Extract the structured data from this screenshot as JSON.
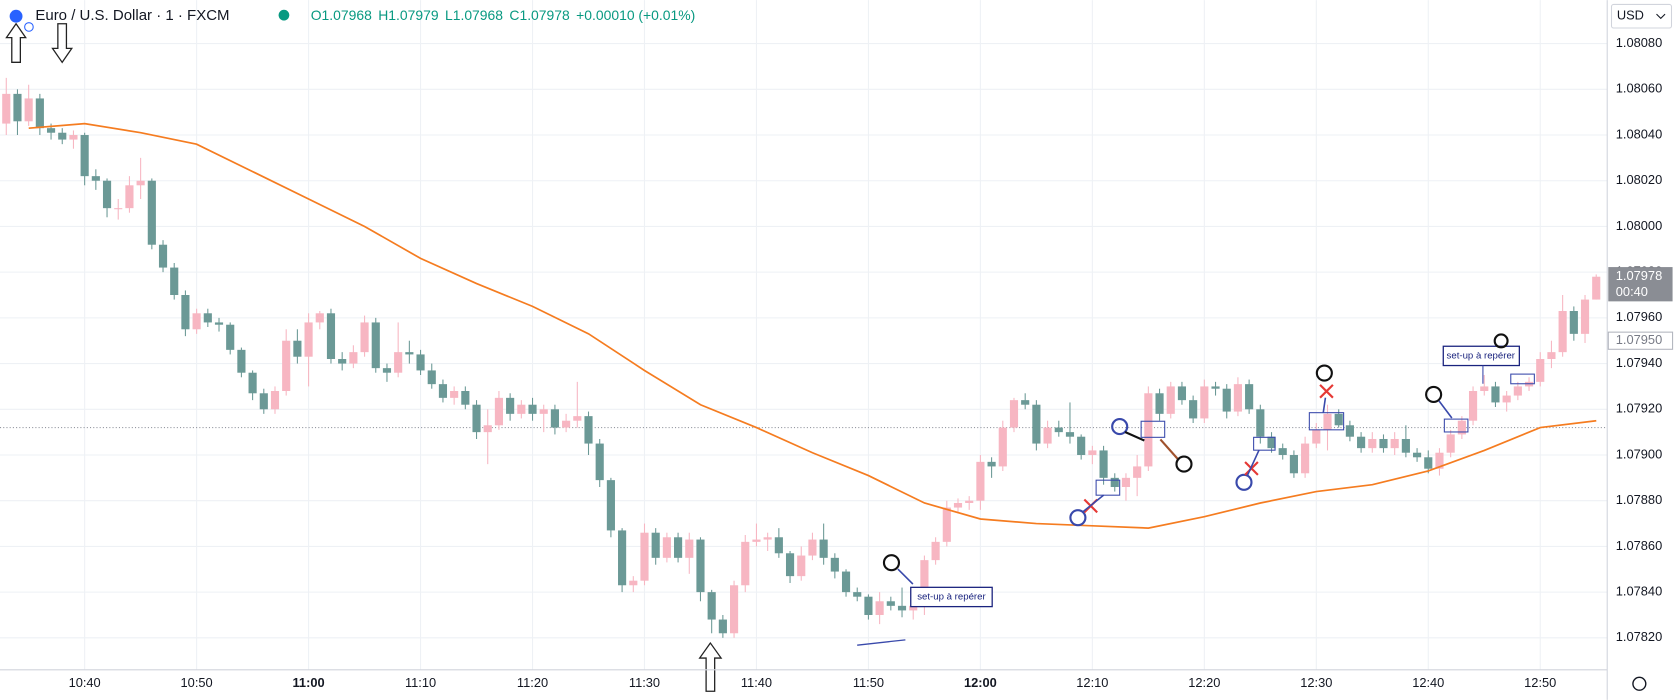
{
  "chart_data": {
    "type": "candlestick",
    "title": "Euro / U.S. Dollar · 1 · FXCM",
    "header_values": [
      "O1.07968",
      "H1.07979",
      "L1.07968",
      "C1.07978",
      "+0.00010 (+0.01%)"
    ],
    "currency": "USD",
    "up_color": "#f7b6c2",
    "down_color": "#6b9996",
    "x": [
      "10:33",
      "10:34",
      "10:35",
      "10:36",
      "10:37",
      "10:38",
      "10:39",
      "10:40",
      "10:41",
      "10:42",
      "10:43",
      "10:44",
      "10:45",
      "10:46",
      "10:47",
      "10:48",
      "10:49",
      "10:50",
      "10:51",
      "10:52",
      "10:53",
      "10:54",
      "10:55",
      "10:56",
      "10:57",
      "10:58",
      "10:59",
      "11:00",
      "11:01",
      "11:02",
      "11:03",
      "11:04",
      "11:05",
      "11:06",
      "11:07",
      "11:08",
      "11:09",
      "11:10",
      "11:11",
      "11:12",
      "11:13",
      "11:14",
      "11:15",
      "11:16",
      "11:17",
      "11:18",
      "11:19",
      "11:20",
      "11:21",
      "11:22",
      "11:23",
      "11:24",
      "11:25",
      "11:26",
      "11:27",
      "11:28",
      "11:29",
      "11:30",
      "11:31",
      "11:32",
      "11:33",
      "11:34",
      "11:35",
      "11:36",
      "11:37",
      "11:38",
      "11:39",
      "11:40",
      "11:41",
      "11:42",
      "11:43",
      "11:44",
      "11:45",
      "11:46",
      "11:47",
      "11:48",
      "11:49",
      "11:50",
      "11:51",
      "11:52",
      "11:53",
      "11:54",
      "11:55",
      "11:56",
      "11:57",
      "11:58",
      "11:59",
      "12:00",
      "12:01",
      "12:02",
      "12:03",
      "12:04",
      "12:05",
      "12:06",
      "12:07",
      "12:08",
      "12:09",
      "12:10",
      "12:11",
      "12:12",
      "12:13",
      "12:14",
      "12:15",
      "12:16",
      "12:17",
      "12:18",
      "12:19",
      "12:20",
      "12:21",
      "12:22",
      "12:23",
      "12:24",
      "12:25",
      "12:26",
      "12:27",
      "12:28",
      "12:29",
      "12:30",
      "12:31",
      "12:32",
      "12:33",
      "12:34",
      "12:35",
      "12:36",
      "12:37",
      "12:38",
      "12:39",
      "12:40",
      "12:41",
      "12:42",
      "12:43",
      "12:44",
      "12:45",
      "12:46",
      "12:47",
      "12:48",
      "12:49",
      "12:50",
      "12:51",
      "12:52",
      "12:53",
      "12:54",
      "12:55"
    ],
    "ohlc": [
      [
        1.08045,
        1.08065,
        1.0804,
        1.08058
      ],
      [
        1.08058,
        1.0806,
        1.0804,
        1.08046
      ],
      [
        1.08046,
        1.08062,
        1.08044,
        1.08056
      ],
      [
        1.08056,
        1.08058,
        1.0804,
        1.08043
      ],
      [
        1.08043,
        1.08045,
        1.08038,
        1.08041
      ],
      [
        1.08041,
        1.08043,
        1.08036,
        1.08038
      ],
      [
        1.08038,
        1.08042,
        1.08034,
        1.0804
      ],
      [
        1.0804,
        1.08041,
        1.08018,
        1.08022
      ],
      [
        1.08022,
        1.08025,
        1.08016,
        1.0802
      ],
      [
        1.0802,
        1.08021,
        1.08004,
        1.08008
      ],
      [
        1.08008,
        1.08012,
        1.08003,
        1.08008
      ],
      [
        1.08008,
        1.08022,
        1.08006,
        1.08018
      ],
      [
        1.08018,
        1.0803,
        1.08012,
        1.0802
      ],
      [
        1.0802,
        1.08021,
        1.0799,
        1.07992
      ],
      [
        1.07992,
        1.07994,
        1.0798,
        1.07982
      ],
      [
        1.07982,
        1.07984,
        1.07968,
        1.0797
      ],
      [
        1.0797,
        1.07972,
        1.07952,
        1.07955
      ],
      [
        1.07955,
        1.07964,
        1.07953,
        1.07962
      ],
      [
        1.07962,
        1.07964,
        1.07956,
        1.07958
      ],
      [
        1.07958,
        1.0796,
        1.07954,
        1.07957
      ],
      [
        1.07957,
        1.07958,
        1.07944,
        1.07946
      ],
      [
        1.07946,
        1.07947,
        1.07934,
        1.07936
      ],
      [
        1.07936,
        1.07937,
        1.07924,
        1.07927
      ],
      [
        1.07927,
        1.07929,
        1.07918,
        1.0792
      ],
      [
        1.0792,
        1.0793,
        1.07918,
        1.07928
      ],
      [
        1.07928,
        1.07955,
        1.07926,
        1.0795
      ],
      [
        1.0795,
        1.07955,
        1.0794,
        1.07943
      ],
      [
        1.07943,
        1.07962,
        1.0793,
        1.07958
      ],
      [
        1.07958,
        1.07963,
        1.07955,
        1.07962
      ],
      [
        1.07962,
        1.07964,
        1.0794,
        1.07942
      ],
      [
        1.07942,
        1.07945,
        1.07937,
        1.0794
      ],
      [
        1.0794,
        1.07948,
        1.07938,
        1.07945
      ],
      [
        1.07945,
        1.07961,
        1.07943,
        1.07958
      ],
      [
        1.07958,
        1.0796,
        1.07936,
        1.07938
      ],
      [
        1.07938,
        1.0794,
        1.07932,
        1.07936
      ],
      [
        1.07936,
        1.07958,
        1.07934,
        1.07945
      ],
      [
        1.07945,
        1.0795,
        1.0794,
        1.07944
      ],
      [
        1.07944,
        1.07946,
        1.07935,
        1.07937
      ],
      [
        1.07937,
        1.0794,
        1.07929,
        1.07931
      ],
      [
        1.07931,
        1.07933,
        1.07923,
        1.07925
      ],
      [
        1.07925,
        1.0793,
        1.07922,
        1.07928
      ],
      [
        1.07928,
        1.0793,
        1.0792,
        1.07922
      ],
      [
        1.07922,
        1.07924,
        1.07907,
        1.0791
      ],
      [
        1.0791,
        1.0792,
        1.07896,
        1.07913
      ],
      [
        1.07913,
        1.07928,
        1.07911,
        1.07925
      ],
      [
        1.07925,
        1.07927,
        1.07915,
        1.07918
      ],
      [
        1.07918,
        1.07924,
        1.07916,
        1.07922
      ],
      [
        1.07922,
        1.07925,
        1.07915,
        1.07918
      ],
      [
        1.07918,
        1.07922,
        1.0791,
        1.0792
      ],
      [
        1.0792,
        1.07922,
        1.07909,
        1.07912
      ],
      [
        1.07912,
        1.07918,
        1.0791,
        1.07915
      ],
      [
        1.07915,
        1.07932,
        1.07912,
        1.07917
      ],
      [
        1.07917,
        1.07919,
        1.079,
        1.07905
      ],
      [
        1.07905,
        1.07907,
        1.07886,
        1.07889
      ],
      [
        1.07889,
        1.0789,
        1.07864,
        1.07867
      ],
      [
        1.07867,
        1.07868,
        1.0784,
        1.07843
      ],
      [
        1.07843,
        1.07847,
        1.0784,
        1.07845
      ],
      [
        1.07845,
        1.0787,
        1.07843,
        1.07866
      ],
      [
        1.07866,
        1.07868,
        1.07852,
        1.07855
      ],
      [
        1.07855,
        1.07866,
        1.07853,
        1.07864
      ],
      [
        1.07864,
        1.07866,
        1.07853,
        1.07855
      ],
      [
        1.07855,
        1.07866,
        1.07848,
        1.07863
      ],
      [
        1.07863,
        1.07864,
        1.07836,
        1.0784
      ],
      [
        1.0784,
        1.07841,
        1.07822,
        1.07828
      ],
      [
        1.07828,
        1.0783,
        1.0782,
        1.07822
      ],
      [
        1.07822,
        1.07845,
        1.0782,
        1.07843
      ],
      [
        1.07843,
        1.07865,
        1.0784,
        1.07862
      ],
      [
        1.07862,
        1.0787,
        1.0786,
        1.07863
      ],
      [
        1.07863,
        1.07866,
        1.07858,
        1.07864
      ],
      [
        1.07864,
        1.07868,
        1.07855,
        1.07857
      ],
      [
        1.07857,
        1.07858,
        1.07844,
        1.07847
      ],
      [
        1.07847,
        1.0786,
        1.07845,
        1.07856
      ],
      [
        1.07856,
        1.07866,
        1.07854,
        1.07863
      ],
      [
        1.07863,
        1.0787,
        1.07852,
        1.07855
      ],
      [
        1.07855,
        1.07857,
        1.07846,
        1.07849
      ],
      [
        1.07849,
        1.0785,
        1.07838,
        1.0784
      ],
      [
        1.0784,
        1.07842,
        1.07836,
        1.07838
      ],
      [
        1.07838,
        1.07839,
        1.07828,
        1.0783
      ],
      [
        1.0783,
        1.0784,
        1.07826,
        1.07836
      ],
      [
        1.07836,
        1.07838,
        1.07832,
        1.07834
      ],
      [
        1.07834,
        1.07842,
        1.07829,
        1.07832
      ],
      [
        1.07832,
        1.07836,
        1.07828,
        1.07834
      ],
      [
        1.07834,
        1.07856,
        1.0783,
        1.07854
      ],
      [
        1.07854,
        1.07864,
        1.07852,
        1.07862
      ],
      [
        1.07862,
        1.0788,
        1.0786,
        1.07877
      ],
      [
        1.07877,
        1.07881,
        1.07875,
        1.07879
      ],
      [
        1.07879,
        1.07882,
        1.07876,
        1.0788
      ],
      [
        1.0788,
        1.079,
        1.07876,
        1.07897
      ],
      [
        1.07897,
        1.07899,
        1.0789,
        1.07895
      ],
      [
        1.07895,
        1.07915,
        1.07893,
        1.07912
      ],
      [
        1.07912,
        1.07925,
        1.0791,
        1.07924
      ],
      [
        1.07924,
        1.07927,
        1.0792,
        1.07922
      ],
      [
        1.07922,
        1.07924,
        1.07902,
        1.07905
      ],
      [
        1.07905,
        1.07915,
        1.07903,
        1.07912
      ],
      [
        1.07912,
        1.07915,
        1.07908,
        1.0791
      ],
      [
        1.0791,
        1.07923,
        1.07905,
        1.07908
      ],
      [
        1.07908,
        1.07909,
        1.07898,
        1.079
      ],
      [
        1.079,
        1.07904,
        1.07896,
        1.07902
      ],
      [
        1.07902,
        1.07904,
        1.07887,
        1.0789
      ],
      [
        1.0789,
        1.07892,
        1.07884,
        1.07886
      ],
      [
        1.07886,
        1.07892,
        1.0788,
        1.0789
      ],
      [
        1.0789,
        1.079,
        1.07882,
        1.07895
      ],
      [
        1.07895,
        1.0793,
        1.07893,
        1.07927
      ],
      [
        1.07927,
        1.07929,
        1.07915,
        1.07918
      ],
      [
        1.07918,
        1.07932,
        1.07916,
        1.0793
      ],
      [
        1.0793,
        1.07932,
        1.07922,
        1.07924
      ],
      [
        1.07924,
        1.07926,
        1.07914,
        1.07916
      ],
      [
        1.07916,
        1.07933,
        1.07914,
        1.0793
      ],
      [
        1.0793,
        1.07932,
        1.07926,
        1.07929
      ],
      [
        1.07929,
        1.07931,
        1.07916,
        1.07919
      ],
      [
        1.07919,
        1.07934,
        1.07917,
        1.07931
      ],
      [
        1.07931,
        1.07933,
        1.07918,
        1.0792
      ],
      [
        1.0792,
        1.07922,
        1.07905,
        1.07908
      ],
      [
        1.07908,
        1.0791,
        1.07901,
        1.07903
      ],
      [
        1.07903,
        1.07905,
        1.07898,
        1.079
      ],
      [
        1.079,
        1.07902,
        1.0789,
        1.07892
      ],
      [
        1.07892,
        1.07908,
        1.0789,
        1.07905
      ],
      [
        1.07905,
        1.07914,
        1.07903,
        1.07911
      ],
      [
        1.07911,
        1.07922,
        1.07902,
        1.07918
      ],
      [
        1.07918,
        1.0792,
        1.07912,
        1.07913
      ],
      [
        1.07913,
        1.07915,
        1.07906,
        1.07908
      ],
      [
        1.07908,
        1.0791,
        1.07901,
        1.07903
      ],
      [
        1.07903,
        1.0791,
        1.07901,
        1.07907
      ],
      [
        1.07907,
        1.07909,
        1.07901,
        1.07903
      ],
      [
        1.07903,
        1.0791,
        1.079,
        1.07907
      ],
      [
        1.07907,
        1.07913,
        1.07899,
        1.07901
      ],
      [
        1.07901,
        1.07903,
        1.07897,
        1.07899
      ],
      [
        1.07899,
        1.07902,
        1.07892,
        1.07894
      ],
      [
        1.07894,
        1.07903,
        1.07891,
        1.07901
      ],
      [
        1.07901,
        1.07911,
        1.07899,
        1.07909
      ],
      [
        1.07909,
        1.07917,
        1.07907,
        1.07915
      ],
      [
        1.07915,
        1.0793,
        1.07913,
        1.07928
      ],
      [
        1.07928,
        1.07935,
        1.07926,
        1.0793
      ],
      [
        1.0793,
        1.07932,
        1.07921,
        1.07923
      ],
      [
        1.07923,
        1.07928,
        1.07919,
        1.07926
      ],
      [
        1.07926,
        1.07932,
        1.07924,
        1.0793
      ],
      [
        1.0793,
        1.07934,
        1.07928,
        1.07932
      ],
      [
        1.07932,
        1.07945,
        1.0793,
        1.07942
      ],
      [
        1.07942,
        1.0795,
        1.07938,
        1.07945
      ],
      [
        1.07945,
        1.0797,
        1.07943,
        1.07963
      ],
      [
        1.07963,
        1.07965,
        1.0795,
        1.07953
      ],
      [
        1.07953,
        1.0797,
        1.07949,
        1.07968
      ],
      [
        1.07968,
        1.07979,
        1.07968,
        1.07978
      ]
    ],
    "ma": {
      "color": "#f57c20",
      "x": [
        "10:35",
        "10:40",
        "10:45",
        "10:50",
        "10:55",
        "11:00",
        "11:05",
        "11:10",
        "11:15",
        "11:20",
        "11:25",
        "11:30",
        "11:35",
        "11:40",
        "11:45",
        "11:50",
        "11:55",
        "12:00",
        "12:05",
        "12:10",
        "12:15",
        "12:20",
        "12:25",
        "12:30",
        "12:35",
        "12:40",
        "12:45",
        "12:50",
        "12:55"
      ],
      "values": [
        1.08043,
        1.08045,
        1.08041,
        1.08036,
        1.08024,
        1.08012,
        1.08,
        1.07986,
        1.07975,
        1.07965,
        1.07953,
        1.07937,
        1.07922,
        1.07912,
        1.07901,
        1.07891,
        1.07879,
        1.07872,
        1.0787,
        1.07869,
        1.07868,
        1.07873,
        1.07879,
        1.07884,
        1.07887,
        1.07893,
        1.07902,
        1.07912,
        1.07915
      ]
    },
    "ylim": [
      1.07806,
      1.08099
    ],
    "yticks": [
      {
        "value": 1.0782,
        "label": "1.07820"
      },
      {
        "value": 1.0784,
        "label": "1.07840"
      },
      {
        "value": 1.0786,
        "label": "1.07860"
      },
      {
        "value": 1.0788,
        "label": "1.07880"
      },
      {
        "value": 1.079,
        "label": "1.07900"
      },
      {
        "value": 1.0792,
        "label": "1.07920"
      },
      {
        "value": 1.0794,
        "label": "1.07940"
      },
      {
        "value": 1.0796,
        "label": "1.07960"
      },
      {
        "value": 1.0798,
        "label": "1.07980"
      },
      {
        "value": 1.08,
        "label": "1.08000"
      },
      {
        "value": 1.0802,
        "label": "1.08020"
      },
      {
        "value": 1.0804,
        "label": "1.08040"
      },
      {
        "value": 1.0806,
        "label": "1.08060"
      },
      {
        "value": 1.0808,
        "label": "1.08080"
      }
    ],
    "xticks": [
      "10:40",
      "10:50",
      "11:00",
      "11:10",
      "11:20",
      "11:30",
      "11:40",
      "11:50",
      "12:00",
      "12:10",
      "12:20",
      "12:30",
      "12:40",
      "12:50"
    ],
    "grid": true,
    "reference_line": 1.07912,
    "last_price": {
      "value": 1.07978,
      "label": "1.07978"
    },
    "countdown": "00:40",
    "marked_price": {
      "value": 1.0795,
      "label": "1.07950"
    },
    "annotations": [
      "set-up à repérer",
      "set-up à repérer"
    ]
  }
}
